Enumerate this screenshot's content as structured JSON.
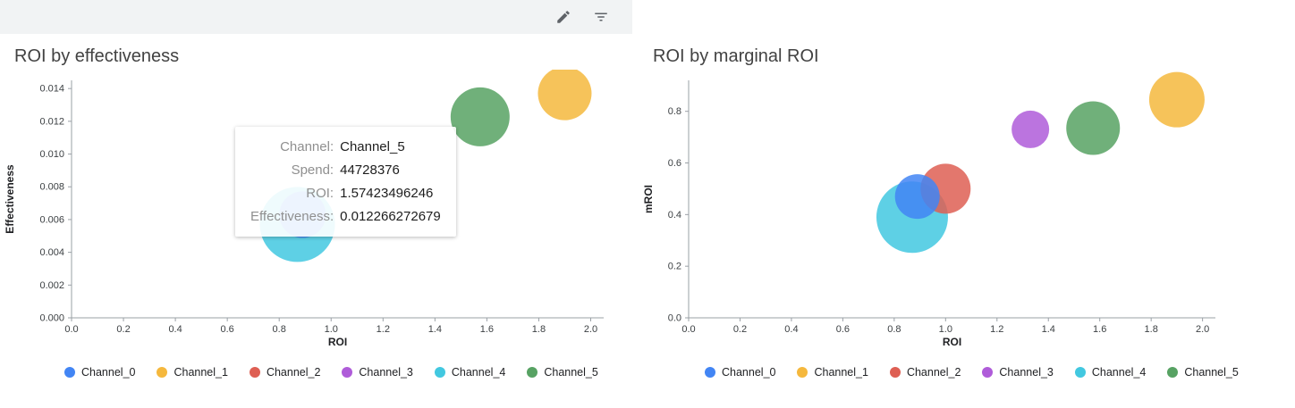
{
  "toolbar": {
    "icons": [
      "edit-icon",
      "filter-icon"
    ]
  },
  "channels": [
    {
      "name": "Channel_0",
      "color": "#4285F4"
    },
    {
      "name": "Channel_1",
      "color": "#F5B83D"
    },
    {
      "name": "Channel_2",
      "color": "#DE5F53"
    },
    {
      "name": "Channel_3",
      "color": "#AF5CD9"
    },
    {
      "name": "Channel_4",
      "color": "#42C8E0"
    },
    {
      "name": "Channel_5",
      "color": "#57A263"
    }
  ],
  "tooltip": {
    "rows": [
      {
        "label": "Channel:",
        "value": "Channel_5"
      },
      {
        "label": "Spend:",
        "value": "44728376"
      },
      {
        "label": "ROI:",
        "value": "1.57423496246"
      },
      {
        "label": "Effectiveness:",
        "value": "0.012266272679"
      }
    ]
  },
  "chart_data": [
    {
      "type": "scatter",
      "title": "ROI by effectiveness",
      "xlabel": "ROI",
      "ylabel": "Effectiveness",
      "xlim": [
        0,
        2.05
      ],
      "ylim": [
        0,
        0.0145
      ],
      "grid": false,
      "legend_position": "bottom",
      "xticks": [
        "0.0",
        "0.2",
        "0.4",
        "0.6",
        "0.8",
        "1.0",
        "1.2",
        "1.4",
        "1.6",
        "1.8",
        "2.0"
      ],
      "yticks": [
        "0.000",
        "0.002",
        "0.004",
        "0.006",
        "0.008",
        "0.010",
        "0.012",
        "0.014"
      ],
      "bubbles": [
        {
          "channel": "Channel_4",
          "x": 0.87,
          "y": 0.0057,
          "r": 42
        },
        {
          "channel": "Channel_0",
          "x": 0.89,
          "y": 0.0063,
          "r": 26
        },
        {
          "channel": "Channel_5",
          "x": 1.574,
          "y": 0.01227,
          "r": 33
        },
        {
          "channel": "Channel_1",
          "x": 1.9,
          "y": 0.0137,
          "r": 30
        }
      ]
    },
    {
      "type": "scatter",
      "title": "ROI by marginal ROI",
      "xlabel": "ROI",
      "ylabel": "mROI",
      "xlim": [
        0,
        2.05
      ],
      "ylim": [
        0,
        0.92
      ],
      "grid": false,
      "legend_position": "bottom",
      "xticks": [
        "0.0",
        "0.2",
        "0.4",
        "0.6",
        "0.8",
        "1.0",
        "1.2",
        "1.4",
        "1.6",
        "1.8",
        "2.0"
      ],
      "yticks": [
        "0.0",
        "0.2",
        "0.4",
        "0.6",
        "0.8"
      ],
      "bubbles": [
        {
          "channel": "Channel_4",
          "x": 0.87,
          "y": 0.39,
          "r": 40
        },
        {
          "channel": "Channel_2",
          "x": 1.0,
          "y": 0.5,
          "r": 28
        },
        {
          "channel": "Channel_0",
          "x": 0.89,
          "y": 0.47,
          "r": 25
        },
        {
          "channel": "Channel_3",
          "x": 1.33,
          "y": 0.73,
          "r": 21
        },
        {
          "channel": "Channel_5",
          "x": 1.574,
          "y": 0.735,
          "r": 30
        },
        {
          "channel": "Channel_1",
          "x": 1.9,
          "y": 0.845,
          "r": 31
        }
      ]
    }
  ]
}
